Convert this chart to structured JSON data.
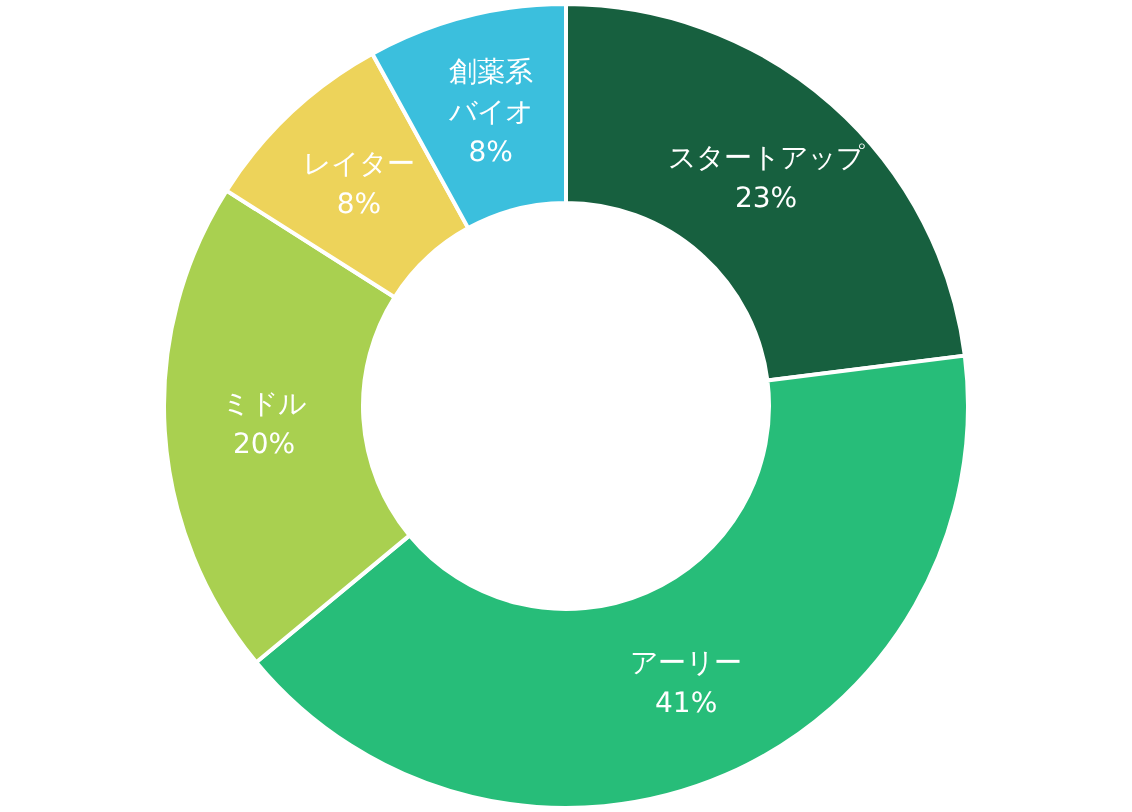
{
  "chart_data": {
    "type": "donut",
    "categories": [
      "スタートアップ",
      "アーリー",
      "ミドル",
      "レイター",
      "創薬系バイオ"
    ],
    "values": [
      23,
      41,
      20,
      8,
      8
    ],
    "value_labels": [
      "23%",
      "41%",
      "20%",
      "8%",
      "8%"
    ],
    "colors": [
      "#17603f",
      "#27bd79",
      "#a9d050",
      "#edd35a",
      "#3bbfdd"
    ]
  }
}
